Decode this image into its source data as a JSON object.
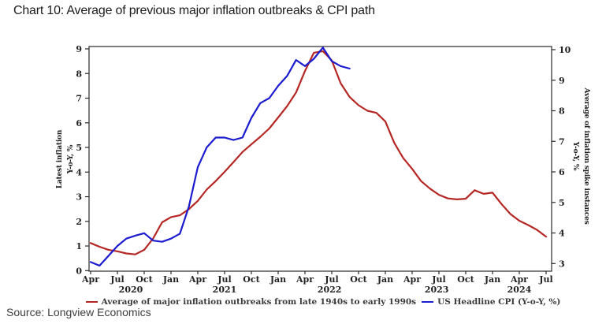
{
  "title": "Chart 10: Average of previous major inflation outbreaks & CPI path",
  "source": "Source: Longview Economics",
  "legend": [
    {
      "label": "Average of major inflation outbreaks from late 1940s to early 1990s",
      "color": "#b52724"
    },
    {
      "label": "US Headline CPI (Y-o-Y, %)",
      "color": "#1b1bd0"
    }
  ],
  "chart_data": {
    "type": "line",
    "x_unit": "month",
    "x_start": "Apr 2020",
    "x_end": "Jul 2024",
    "x_tick_labels": [
      "Apr",
      "Jul",
      "Oct",
      "Jan",
      "Apr",
      "Jul",
      "Oct",
      "Jan",
      "Apr",
      "Jul",
      "Oct",
      "Jan",
      "Apr",
      "Jul",
      "Oct",
      "Jan",
      "Apr",
      "Jul"
    ],
    "year_labels": [
      {
        "text": "2020",
        "mid_month_index": 4.5
      },
      {
        "text": "2021",
        "mid_month_index": 15
      },
      {
        "text": "2022",
        "mid_month_index": 26.75
      },
      {
        "text": "2023",
        "mid_month_index": 38.75
      },
      {
        "text": "2024",
        "mid_month_index": 48
      }
    ],
    "left_axis": {
      "title_line1": "Latest inflation",
      "title_line2": "Y-o-Y, %",
      "ticks": [
        0,
        1,
        2,
        3,
        4,
        5,
        6,
        7,
        8,
        9
      ],
      "range": [
        0,
        9
      ]
    },
    "right_axis": {
      "title_line1": "Average of inflation spike instances",
      "title_line2": "Y-o-Y, %",
      "ticks": [
        3,
        4,
        5,
        6,
        7,
        8,
        9,
        10
      ],
      "range": [
        3,
        10
      ]
    },
    "series": [
      {
        "name": "Average of major inflation outbreaks from late 1940s to early 1990s",
        "axis": "right",
        "color": "#b52724",
        "values": [
          3.67,
          3.55,
          3.45,
          3.4,
          3.33,
          3.3,
          3.45,
          3.82,
          4.35,
          4.52,
          4.58,
          4.78,
          5.05,
          5.42,
          5.7,
          6.0,
          6.32,
          6.65,
          6.9,
          7.15,
          7.42,
          7.78,
          8.15,
          8.6,
          9.3,
          9.9,
          9.95,
          9.65,
          8.9,
          8.45,
          8.18,
          8.0,
          7.93,
          7.65,
          6.95,
          6.45,
          6.1,
          5.7,
          5.45,
          5.25,
          5.13,
          5.1,
          5.12,
          5.4,
          5.28,
          5.32,
          4.95,
          4.62,
          4.4,
          4.26,
          4.1,
          3.88
        ]
      },
      {
        "name": "US Headline CPI (Y-o-Y, %)",
        "axis": "left",
        "color": "#1b1bd0",
        "values": [
          0.35,
          0.2,
          0.6,
          1.0,
          1.3,
          1.42,
          1.52,
          1.22,
          1.17,
          1.3,
          1.5,
          2.6,
          4.2,
          5.0,
          5.4,
          5.4,
          5.3,
          5.4,
          6.2,
          6.8,
          7.0,
          7.5,
          7.9,
          8.55,
          8.3,
          8.6,
          9.05,
          8.5,
          8.3,
          8.2
        ]
      }
    ]
  }
}
